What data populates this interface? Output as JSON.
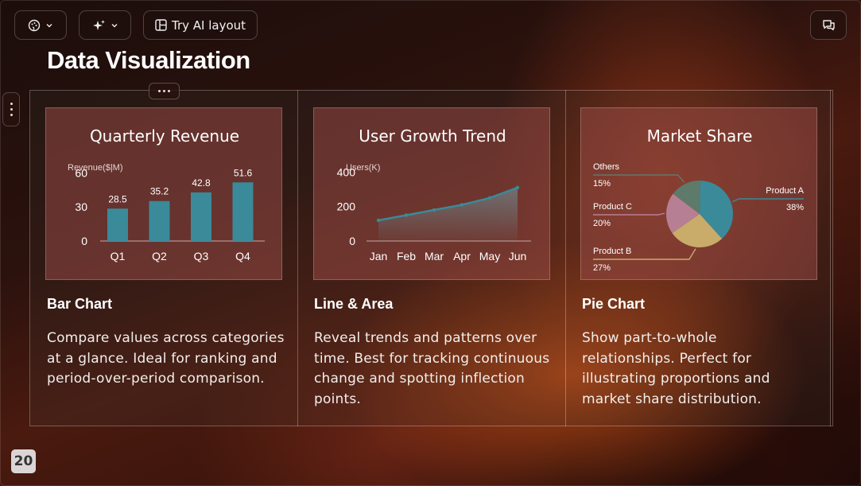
{
  "toolbar": {
    "theme_icon": "palette-icon",
    "magic_icon": "sparkles-icon",
    "ai_layout_icon": "layout-icon",
    "ai_layout_label": "Try AI layout",
    "comment_icon": "comment-icon"
  },
  "slide": {
    "title": "Data Visualization",
    "page_number": "20",
    "cards": [
      {
        "label": "Bar Chart",
        "description": "Compare values across categories at a glance. Ideal for ranking and period-over-period comparison."
      },
      {
        "label": "Line & Area",
        "description": "Reveal trends and patterns over time. Best for tracking continuous change and spotting inflection points."
      },
      {
        "label": "Pie Chart",
        "description": "Show part-to-whole relationships. Perfect for illustrating proportions and market share distribution."
      }
    ]
  },
  "chart_data": [
    {
      "type": "bar",
      "title": "Quarterly Revenue",
      "ylabel": "Revenue($|M)",
      "categories": [
        "Q1",
        "Q2",
        "Q3",
        "Q4"
      ],
      "values": [
        28.5,
        35.2,
        42.8,
        51.6
      ],
      "yticks": [
        0,
        30,
        60
      ],
      "ylim": [
        0,
        70
      ],
      "color": "#3a8a9a",
      "grid": false,
      "legend": "none"
    },
    {
      "type": "area",
      "title": "User Growth Trend",
      "ylabel": "Users(K)",
      "categories": [
        "Jan",
        "Feb",
        "Mar",
        "Apr",
        "May",
        "Jun"
      ],
      "x_positions": [
        1,
        2,
        3,
        4,
        5,
        6
      ],
      "points_x": [
        1,
        2,
        3,
        4,
        5,
        6
      ],
      "values": [
        120,
        150,
        180,
        210,
        250,
        310
      ],
      "yticks": [
        0,
        200,
        400
      ],
      "ylim": [
        0,
        480
      ],
      "color": "#3a8a9a",
      "grid": false,
      "legend": "none"
    },
    {
      "type": "pie",
      "title": "Market Share",
      "slices": [
        {
          "name": "Product A",
          "value": 38,
          "label": "38%",
          "color": "#3a8a9a"
        },
        {
          "name": "Product B",
          "value": 27,
          "label": "27%",
          "color": "#c9ab6a"
        },
        {
          "name": "Product C",
          "value": 20,
          "label": "20%",
          "color": "#b77f93"
        },
        {
          "name": "Others",
          "value": 15,
          "label": "15%",
          "color": "#5e7a6a"
        }
      ],
      "legend": "callout-labels"
    }
  ]
}
